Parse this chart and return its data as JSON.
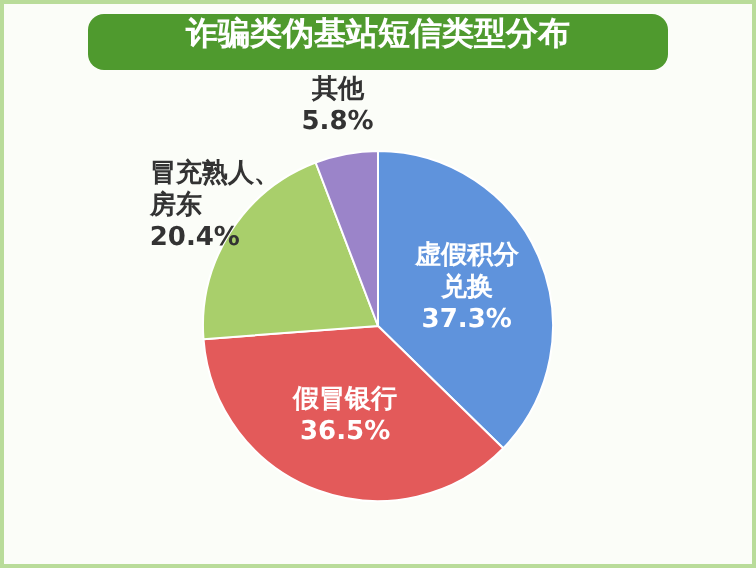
{
  "chart_data": {
    "type": "pie",
    "title": "诈骗类伪基站短信类型分布",
    "categories": [
      "虚假积分兑换",
      "假冒银行",
      "冒充熟人、房东",
      "其他"
    ],
    "values": [
      37.3,
      36.5,
      20.4,
      5.8
    ],
    "value_labels": [
      "37.3%",
      "36.5%",
      "20.4%",
      "5.8%"
    ],
    "colors": [
      "#5f93dc",
      "#e35a5a",
      "#a9cf6b",
      "#9b84c9"
    ],
    "legend": false
  }
}
